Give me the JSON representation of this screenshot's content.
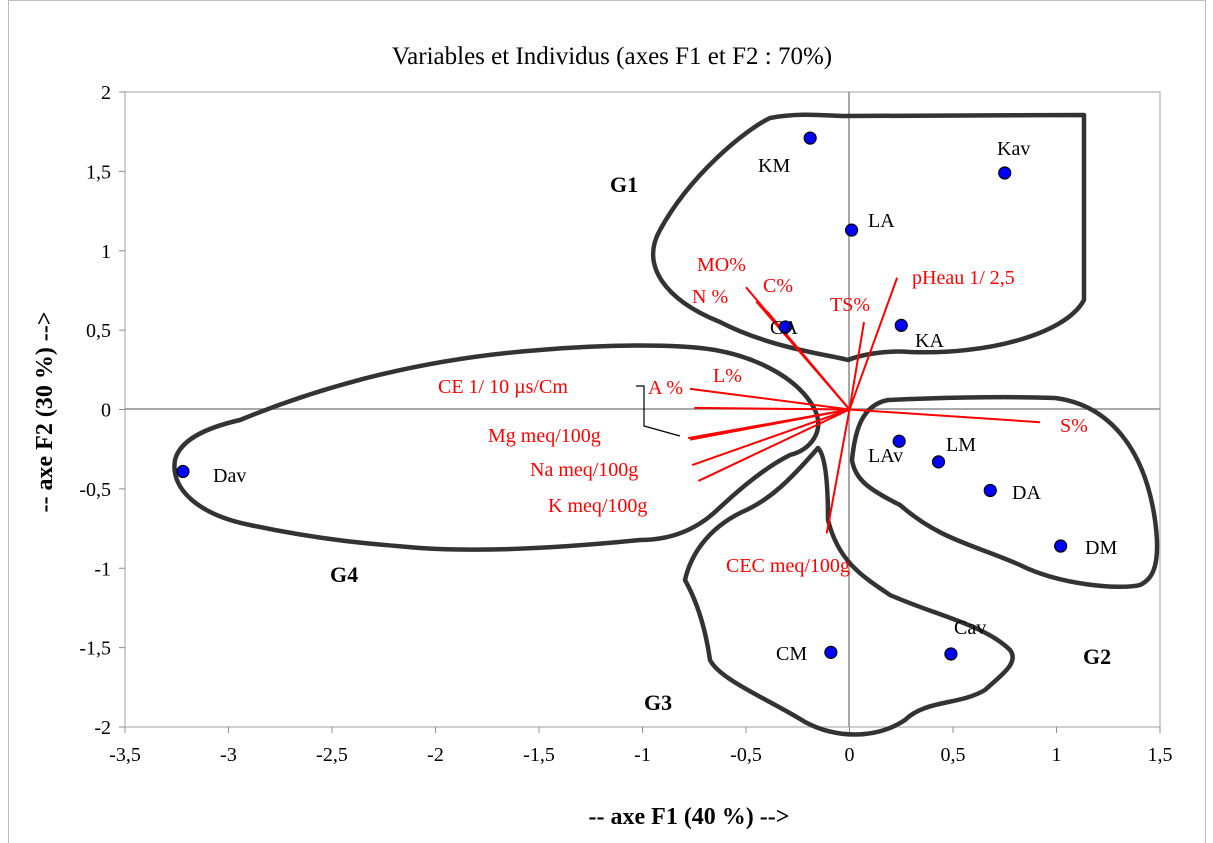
{
  "chart_data": {
    "type": "scatter",
    "title": "Variables et Individus (axes F1 et F2 : 70%)",
    "xlabel": "-- axe F1 (40 %) -->",
    "ylabel": "-- axe F2 (30 %) -->",
    "xlim": [
      -3.5,
      1.5
    ],
    "ylim": [
      -2,
      2
    ],
    "x_ticks": [
      -3.5,
      -3,
      -2.5,
      -2,
      -1.5,
      -1,
      -0.5,
      0,
      0.5,
      1,
      1.5
    ],
    "x_tick_labels": [
      "-3,5",
      "-3",
      "-2,5",
      "-2",
      "-1,5",
      "-1",
      "-0,5",
      "0",
      "0,5",
      "1",
      "1,5"
    ],
    "y_ticks": [
      -2,
      -1.5,
      -1,
      -0.5,
      0,
      0.5,
      1,
      1.5,
      2
    ],
    "y_tick_labels": [
      "-2",
      "-1,5",
      "-1",
      "-0,5",
      "0",
      "0,5",
      "1",
      "1,5",
      "2"
    ],
    "grid": false,
    "zero_lines": true,
    "point_color": "#0000ff",
    "vector_color": "#ff0000",
    "individuals": [
      {
        "label": "KM",
        "x": -0.19,
        "y": 1.71
      },
      {
        "label": "Kav",
        "x": 0.75,
        "y": 1.49
      },
      {
        "label": "LA",
        "x": 0.01,
        "y": 1.13
      },
      {
        "label": "CA",
        "x": -0.31,
        "y": 0.52
      },
      {
        "label": "KA",
        "x": 0.25,
        "y": 0.53
      },
      {
        "label": "Dav",
        "x": -3.22,
        "y": -0.39
      },
      {
        "label": "LAv",
        "x": 0.24,
        "y": -0.2
      },
      {
        "label": "LM",
        "x": 0.43,
        "y": -0.33
      },
      {
        "label": "DA",
        "x": 0.68,
        "y": -0.51
      },
      {
        "label": "DM",
        "x": 1.02,
        "y": -0.86
      },
      {
        "label": "CM",
        "x": -0.09,
        "y": -1.53
      },
      {
        "label": "Cav",
        "x": 0.49,
        "y": -1.54
      }
    ],
    "variables": [
      {
        "label": "MO%",
        "x": -0.5,
        "y": 0.77
      },
      {
        "label": "C%",
        "x": -0.45,
        "y": 0.68
      },
      {
        "label": "N %",
        "x": -0.4,
        "y": 0.62
      },
      {
        "label": "TS%",
        "x": 0.07,
        "y": 0.55
      },
      {
        "label": "pHeau 1/ 2,5",
        "x": 0.23,
        "y": 0.83
      },
      {
        "label": "L%",
        "x": -0.77,
        "y": 0.13
      },
      {
        "label": "A %",
        "x": -0.75,
        "y": 0.01
      },
      {
        "label": "CE 1/ 10 µs/Cm",
        "x": -0.78,
        "y": -0.18
      },
      {
        "label": "Mg meq/100g",
        "x": -0.77,
        "y": -0.19
      },
      {
        "label": "Na meq/100g",
        "x": -0.76,
        "y": -0.35
      },
      {
        "label": "K meq/100g",
        "x": -0.73,
        "y": -0.45
      },
      {
        "label": "S%",
        "x": 0.92,
        "y": -0.08
      },
      {
        "label": "CEC meq/100g",
        "x": -0.11,
        "y": -0.78
      }
    ],
    "groups": [
      "G1",
      "G2",
      "G3",
      "G4"
    ]
  }
}
